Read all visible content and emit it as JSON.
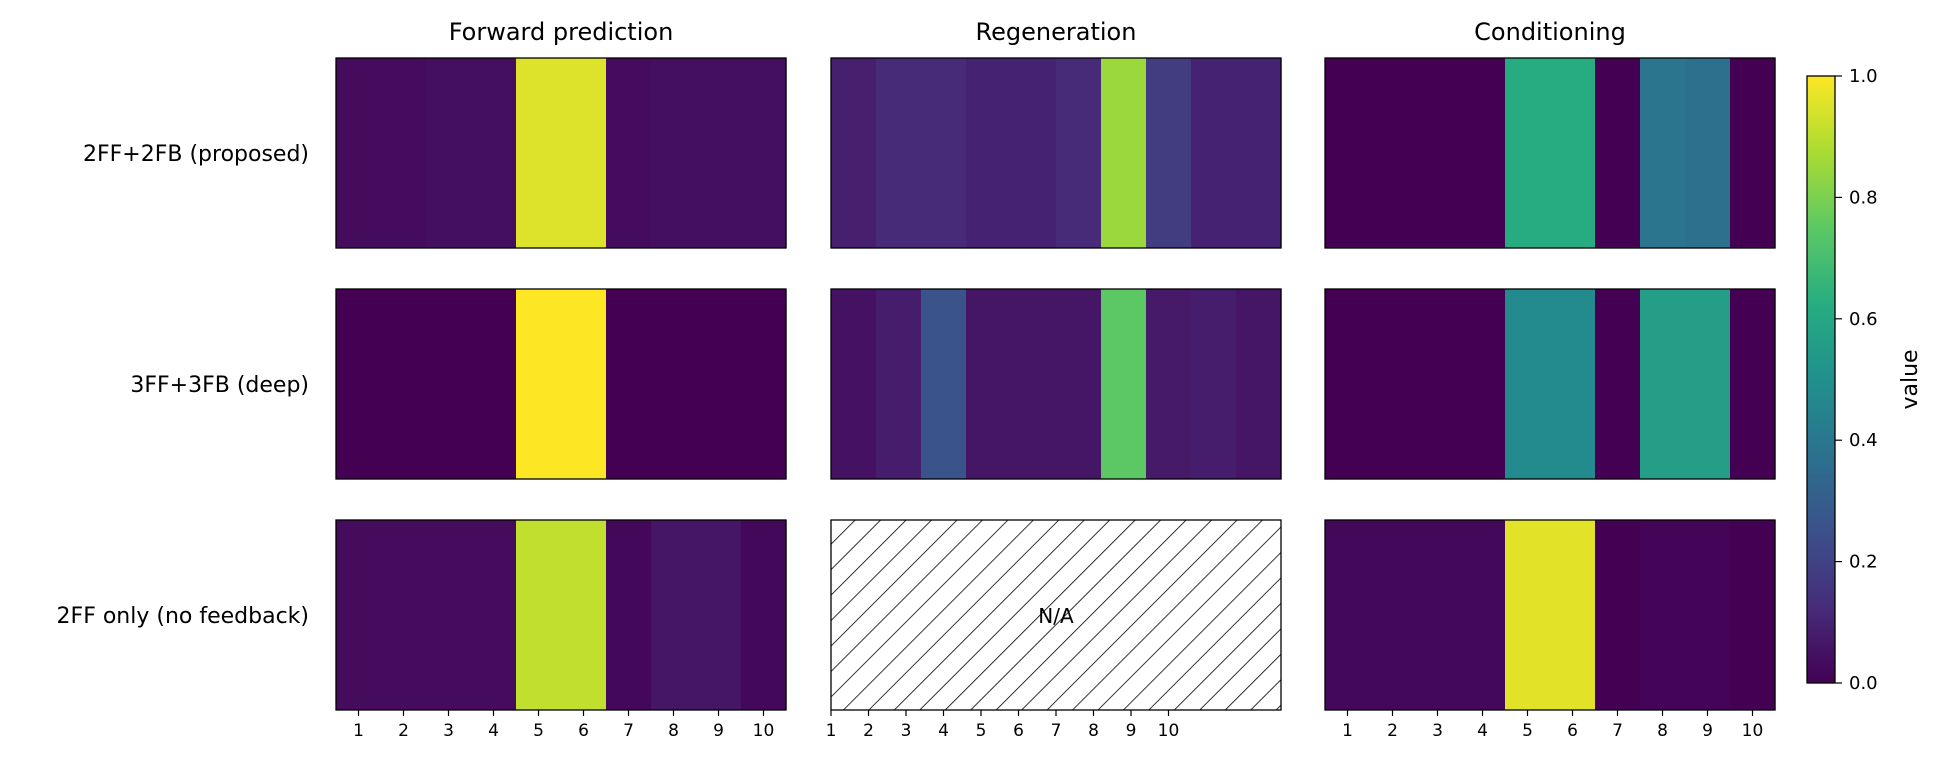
{
  "chart_data": {
    "type": "heatmap",
    "colormap": "viridis",
    "columns": [
      "Forward prediction",
      "Regeneration",
      "Conditioning"
    ],
    "rows": [
      "2FF+2FB (proposed)",
      "3FF+3FB (deep)",
      "2FF only (no feedback)"
    ],
    "x_ticks": [
      "1",
      "2",
      "3",
      "4",
      "5",
      "6",
      "7",
      "8",
      "9",
      "10"
    ],
    "vmin": 0.0,
    "vmax": 1.0,
    "colorbar": {
      "label": "value",
      "ticks": [
        "0.0",
        "0.2",
        "0.4",
        "0.6",
        "0.8",
        "1.0"
      ]
    },
    "na_text": "N/A",
    "values": [
      [
        [
          0.03,
          0.03,
          0.04,
          0.04,
          0.95,
          0.95,
          0.03,
          0.04,
          0.04,
          0.04
        ],
        [
          0.09,
          0.12,
          0.12,
          0.1,
          0.1,
          0.12,
          0.85,
          0.18,
          0.1,
          0.1
        ],
        [
          0.0,
          0.0,
          0.0,
          0.0,
          0.62,
          0.62,
          0.0,
          0.39,
          0.37,
          0.0
        ]
      ],
      [
        [
          0.0,
          0.0,
          0.0,
          0.0,
          1.0,
          1.0,
          0.0,
          0.0,
          0.0,
          0.0
        ],
        [
          0.05,
          0.08,
          0.26,
          0.06,
          0.06,
          0.06,
          0.75,
          0.07,
          0.08,
          0.06
        ],
        [
          0.0,
          0.0,
          0.0,
          0.0,
          0.48,
          0.48,
          0.0,
          0.56,
          0.56,
          0.0
        ]
      ],
      [
        [
          0.03,
          0.03,
          0.03,
          0.03,
          0.91,
          0.91,
          0.02,
          0.06,
          0.06,
          0.02
        ],
        null,
        [
          0.02,
          0.02,
          0.02,
          0.02,
          0.96,
          0.96,
          0.0,
          0.01,
          0.01,
          0.0
        ]
      ]
    ]
  }
}
